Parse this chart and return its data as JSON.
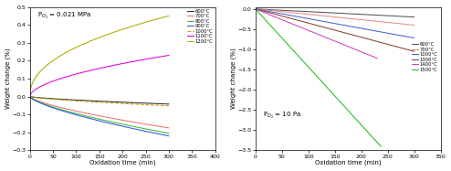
{
  "left": {
    "xlabel": "Oxidation time (min)",
    "ylabel": "Weight change (%)",
    "annotation": "P$_{O_2}$ = 0.021 MPa",
    "xlim": [
      0,
      400
    ],
    "ylim": [
      -0.3,
      0.5
    ],
    "xticks": [
      0,
      50,
      100,
      150,
      200,
      250,
      300,
      350,
      400
    ],
    "yticks": [
      -0.3,
      -0.2,
      -0.1,
      0.0,
      0.1,
      0.2,
      0.3,
      0.4,
      0.5
    ],
    "series": [
      {
        "label": "600°C",
        "color": "#2b2b2b",
        "linestyle": "-",
        "end_x": 300,
        "end_y": -0.042,
        "exponent": 0.7
      },
      {
        "label": "700°C",
        "color": "#f07070",
        "linestyle": "-",
        "end_x": 300,
        "end_y": -0.175,
        "exponent": 0.7
      },
      {
        "label": "800°C",
        "color": "#33bb33",
        "linestyle": "-",
        "end_x": 300,
        "end_y": -0.205,
        "exponent": 0.7
      },
      {
        "label": "900°C",
        "color": "#3355ee",
        "linestyle": "-",
        "end_x": 300,
        "end_y": -0.22,
        "exponent": 0.7
      },
      {
        "label": "1000°C",
        "color": "#cc9900",
        "linestyle": "--",
        "end_x": 300,
        "end_y": -0.052,
        "exponent": 0.7
      },
      {
        "label": "1100°C",
        "color": "#dd00dd",
        "linestyle": "-",
        "end_x": 300,
        "end_y": 0.23,
        "exponent": 0.55
      },
      {
        "label": "1200°C",
        "color": "#aaaa00",
        "linestyle": "-",
        "end_x": 300,
        "end_y": 0.45,
        "exponent": 0.45
      }
    ]
  },
  "right": {
    "xlabel": "Oxidation time (min)",
    "ylabel": "Weight change (%)",
    "annotation": "P$_{O_2}$ = 10 Pa",
    "xlim": [
      0,
      350
    ],
    "ylim": [
      -3.5,
      0.05
    ],
    "xticks": [
      0,
      50,
      100,
      150,
      200,
      250,
      300,
      350
    ],
    "yticks": [
      -3.5,
      -3.0,
      -2.5,
      -2.0,
      -1.5,
      -1.0,
      -0.5,
      0.0
    ],
    "series": [
      {
        "label": "600°C",
        "color": "#555555",
        "linestyle": "-",
        "end_x": 300,
        "end_y": -0.2
      },
      {
        "label": "700°C",
        "color": "#ee8888",
        "linestyle": "-",
        "end_x": 300,
        "end_y": -0.4
      },
      {
        "label": "1000°C",
        "color": "#4466cc",
        "linestyle": "-",
        "end_x": 300,
        "end_y": -0.72
      },
      {
        "label": "1300°C",
        "color": "#884433",
        "linestyle": "-",
        "end_x": 300,
        "end_y": -1.05
      },
      {
        "label": "1400°C",
        "color": "#cc44bb",
        "linestyle": "-",
        "end_x": 230,
        "end_y": -1.22
      },
      {
        "label": "1500°C",
        "color": "#22bb22",
        "linestyle": "-",
        "end_x": 237,
        "end_y": -3.4
      }
    ]
  }
}
